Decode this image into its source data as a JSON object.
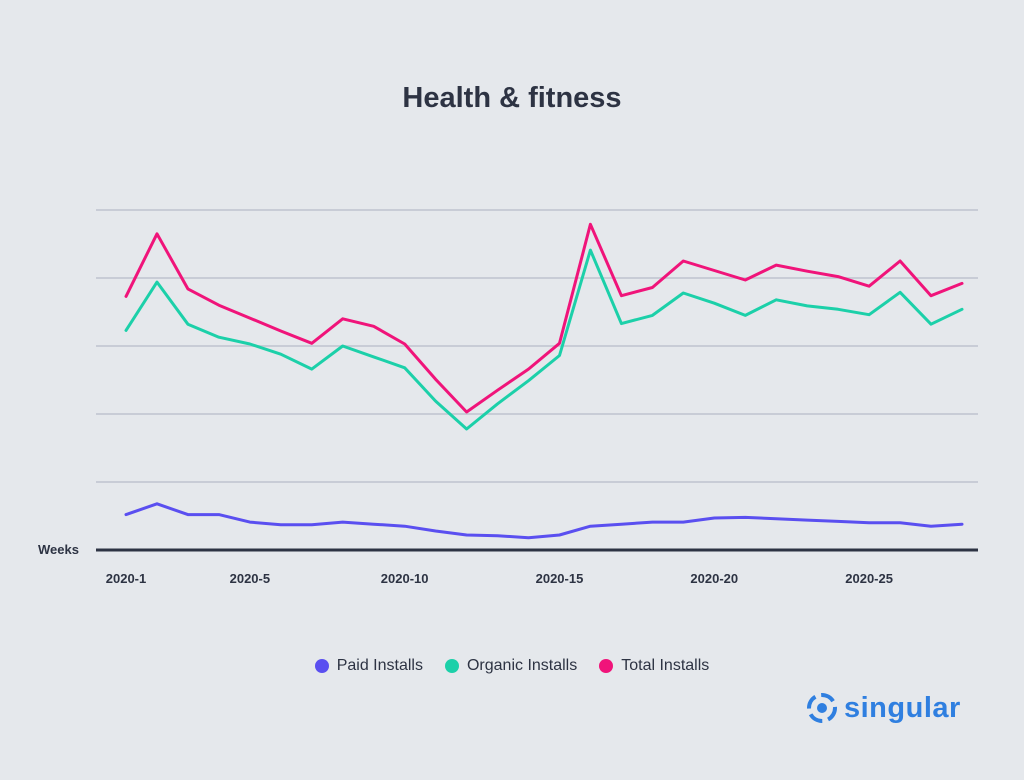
{
  "chart_data": {
    "type": "line",
    "title": "Health & fitness",
    "xlabel": "Weeks",
    "ylabel": "",
    "x": [
      1,
      2,
      3,
      4,
      5,
      6,
      7,
      8,
      9,
      10,
      11,
      12,
      13,
      14,
      15,
      16,
      17,
      18,
      19,
      20,
      21,
      22,
      23,
      24,
      25,
      26,
      27,
      28
    ],
    "x_ticks": [
      {
        "x": 1,
        "label": "2020-1"
      },
      {
        "x": 5,
        "label": "2020-5"
      },
      {
        "x": 10,
        "label": "2020-10"
      },
      {
        "x": 15,
        "label": "2020-15"
      },
      {
        "x": 20,
        "label": "2020-20"
      },
      {
        "x": 25,
        "label": "2020-25"
      }
    ],
    "ylim": [
      0,
      5
    ],
    "y_gridlines": [
      1,
      2,
      3,
      4,
      5
    ],
    "y_tick_labels_shown": false,
    "grid": true,
    "legend_placement": "bottom",
    "series": [
      {
        "name": "Paid Installs",
        "color": "#5a4ff0",
        "values": [
          0.52,
          0.68,
          0.52,
          0.52,
          0.41,
          0.37,
          0.37,
          0.41,
          0.38,
          0.35,
          0.28,
          0.22,
          0.21,
          0.18,
          0.22,
          0.35,
          0.38,
          0.41,
          0.41,
          0.47,
          0.48,
          0.46,
          0.44,
          0.42,
          0.4,
          0.4,
          0.35,
          0.38
        ]
      },
      {
        "name": "Organic Installs",
        "color": "#1cd0a9",
        "values": [
          3.23,
          3.94,
          3.32,
          3.13,
          3.03,
          2.88,
          2.66,
          3.0,
          2.84,
          2.68,
          2.19,
          1.78,
          2.15,
          2.49,
          2.86,
          4.41,
          3.33,
          3.45,
          3.78,
          3.63,
          3.45,
          3.68,
          3.59,
          3.54,
          3.46,
          3.79,
          3.32,
          3.54
        ]
      },
      {
        "name": "Total Installs",
        "color": "#f0147a",
        "values": [
          3.73,
          4.65,
          3.84,
          3.6,
          3.41,
          3.22,
          3.04,
          3.4,
          3.29,
          3.03,
          2.51,
          2.03,
          2.35,
          2.66,
          3.04,
          4.79,
          3.74,
          3.86,
          4.25,
          4.11,
          3.97,
          4.19,
          4.1,
          4.02,
          3.88,
          4.25,
          3.74,
          3.92
        ]
      }
    ]
  },
  "legend": {
    "items": [
      {
        "label": "Paid Installs",
        "color": "#5a4ff0"
      },
      {
        "label": "Organic Installs",
        "color": "#1cd0a9"
      },
      {
        "label": "Total Installs",
        "color": "#f0147a"
      }
    ]
  },
  "brand": {
    "name": "singular",
    "color": "#2f7fe0"
  }
}
